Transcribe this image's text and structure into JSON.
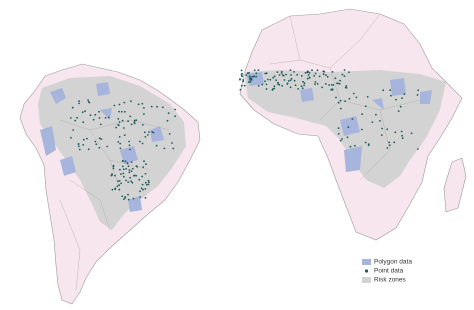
{
  "legend": {
    "items": [
      {
        "label": "Polygon data",
        "color": "#a7b4dc"
      },
      {
        "label": "Point data",
        "color": "#1d5c5a"
      },
      {
        "label": "Risk zones",
        "color": "#d3d3d3"
      }
    ]
  }
}
